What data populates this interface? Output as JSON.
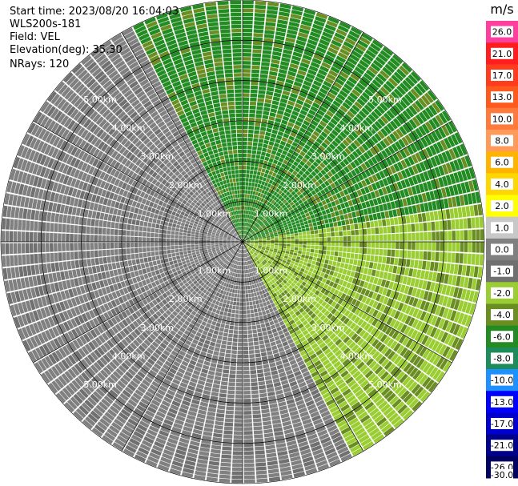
{
  "header": {
    "start_time": "Start time: 2023/08/20 16:04:03",
    "instrument": "WLS200s-181",
    "field": "Field: VEL",
    "elevation": "Elevation(deg): 35.30",
    "nrays": "NRays: 120"
  },
  "colorbar": {
    "unit": "m/s",
    "labels": [
      "26.0",
      "21.0",
      "17.0",
      "13.0",
      "10.0",
      "8.0",
      "6.0",
      "4.0",
      "2.0",
      "1.0",
      "0.0",
      "-1.0",
      "-2.0",
      "-4.0",
      "-6.0",
      "-8.0",
      "-10.0",
      "-13.0",
      "-17.0",
      "-21.0",
      "-26.0",
      "-30.0"
    ],
    "colors": [
      "#ff3fa0",
      "#ff1e1e",
      "#ff3c1e",
      "#ff5a1e",
      "#ff7a3c",
      "#ff9a5a",
      "#ffb400",
      "#ffd700",
      "#ffff00",
      "#c8c8c8",
      "#808080",
      "#707070",
      "#9acd32",
      "#6b8e23",
      "#228b22",
      "#1e8c5a",
      "#1e90ff",
      "#0000ff",
      "#0000cd",
      "#00008b",
      "#000060"
    ]
  },
  "chart_data": {
    "type": "heatmap",
    "projection": "polar PPI",
    "field": "VEL",
    "unit": "m/s",
    "n_rays": 120,
    "range_rings_km": [
      1.0,
      2.0,
      3.0,
      4.0,
      5.0
    ],
    "range_ring_labels": [
      "1.00km",
      "2.00km",
      "3.00km",
      "4.00km",
      "5.00km"
    ],
    "color_scale_min": -30.0,
    "color_scale_max": 26.0,
    "grid": true
  }
}
